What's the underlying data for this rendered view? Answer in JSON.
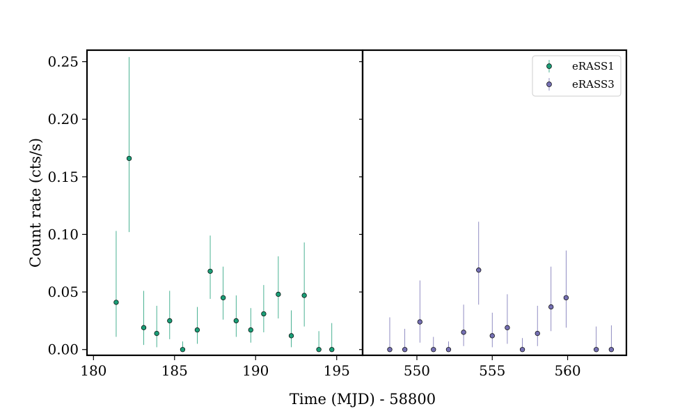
{
  "chart_data": {
    "type": "scatter",
    "xlabel": "Time (MJD) - 58800",
    "ylabel": "Count rate (cts/s)",
    "ylim": [
      -0.005,
      0.26
    ],
    "y_ticks": [
      0.0,
      0.05,
      0.1,
      0.15,
      0.2,
      0.25
    ],
    "y_tick_labels": [
      "0.00",
      "0.05",
      "0.10",
      "0.15",
      "0.20",
      "0.25"
    ],
    "panels": [
      {
        "xlim": [
          179.6,
          196.6
        ],
        "x_ticks": [
          180,
          185,
          190,
          195
        ],
        "x_tick_labels": [
          "180",
          "185",
          "190",
          "195"
        ]
      },
      {
        "xlim": [
          546.4,
          563.9
        ],
        "x_ticks": [
          550,
          555,
          560
        ],
        "x_tick_labels": [
          "550",
          "555",
          "560"
        ]
      }
    ],
    "legend": {
      "position": "upper right"
    },
    "series": [
      {
        "name": "eRASS1",
        "panel": 0,
        "color": "#1b9e77",
        "points": [
          {
            "x": 181.4,
            "y": 0.041,
            "lo": 0.011,
            "hi": 0.103
          },
          {
            "x": 182.2,
            "y": 0.166,
            "lo": 0.102,
            "hi": 0.254
          },
          {
            "x": 183.1,
            "y": 0.019,
            "lo": 0.004,
            "hi": 0.051
          },
          {
            "x": 183.9,
            "y": 0.014,
            "lo": 0.002,
            "hi": 0.038
          },
          {
            "x": 184.7,
            "y": 0.025,
            "lo": 0.009,
            "hi": 0.051
          },
          {
            "x": 185.5,
            "y": 0.0,
            "lo": 0.0,
            "hi": 0.007
          },
          {
            "x": 186.4,
            "y": 0.017,
            "lo": 0.005,
            "hi": 0.037
          },
          {
            "x": 187.2,
            "y": 0.068,
            "lo": 0.044,
            "hi": 0.099
          },
          {
            "x": 188.0,
            "y": 0.045,
            "lo": 0.026,
            "hi": 0.072
          },
          {
            "x": 188.8,
            "y": 0.025,
            "lo": 0.011,
            "hi": 0.047
          },
          {
            "x": 189.7,
            "y": 0.017,
            "lo": 0.006,
            "hi": 0.036
          },
          {
            "x": 190.5,
            "y": 0.031,
            "lo": 0.015,
            "hi": 0.056
          },
          {
            "x": 191.4,
            "y": 0.048,
            "lo": 0.027,
            "hi": 0.081
          },
          {
            "x": 192.2,
            "y": 0.012,
            "lo": 0.002,
            "hi": 0.034
          },
          {
            "x": 193.0,
            "y": 0.047,
            "lo": 0.02,
            "hi": 0.093
          },
          {
            "x": 193.9,
            "y": 0.0,
            "lo": 0.0,
            "hi": 0.016
          },
          {
            "x": 194.7,
            "y": 0.0,
            "lo": 0.0,
            "hi": 0.023
          }
        ]
      },
      {
        "name": "eRASS3",
        "panel": 1,
        "color": "#7570b3",
        "points": [
          {
            "x": 548.2,
            "y": 0.0,
            "lo": 0.0,
            "hi": 0.028
          },
          {
            "x": 549.2,
            "y": 0.0,
            "lo": 0.0,
            "hi": 0.018
          },
          {
            "x": 550.2,
            "y": 0.024,
            "lo": 0.006,
            "hi": 0.06
          },
          {
            "x": 551.1,
            "y": 0.0,
            "lo": 0.0,
            "hi": 0.011
          },
          {
            "x": 552.1,
            "y": 0.0,
            "lo": 0.0,
            "hi": 0.007
          },
          {
            "x": 553.1,
            "y": 0.015,
            "lo": 0.003,
            "hi": 0.039
          },
          {
            "x": 554.1,
            "y": 0.069,
            "lo": 0.039,
            "hi": 0.111
          },
          {
            "x": 555.0,
            "y": 0.012,
            "lo": 0.002,
            "hi": 0.032
          },
          {
            "x": 556.0,
            "y": 0.019,
            "lo": 0.005,
            "hi": 0.048
          },
          {
            "x": 557.0,
            "y": 0.0,
            "lo": 0.0,
            "hi": 0.01
          },
          {
            "x": 558.0,
            "y": 0.014,
            "lo": 0.003,
            "hi": 0.038
          },
          {
            "x": 558.9,
            "y": 0.037,
            "lo": 0.016,
            "hi": 0.072
          },
          {
            "x": 559.9,
            "y": 0.045,
            "lo": 0.019,
            "hi": 0.086
          },
          {
            "x": 561.9,
            "y": 0.0,
            "lo": 0.0,
            "hi": 0.02
          },
          {
            "x": 562.9,
            "y": 0.0,
            "lo": 0.0,
            "hi": 0.021
          }
        ]
      }
    ]
  }
}
